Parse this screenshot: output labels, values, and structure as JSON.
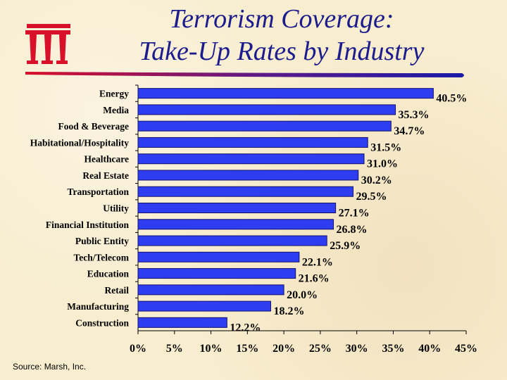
{
  "title": {
    "line1": "Terrorism Coverage:",
    "line2": "Take-Up Rates  by Industry"
  },
  "logo": {
    "icon": "iii-logo-icon",
    "color": "#d8102a"
  },
  "source": "Source: Marsh, Inc.",
  "colors": {
    "bar": "#2f3df0",
    "bar_edge": "#12126e",
    "title": "#1c1c8c",
    "rule": "#1a1aa8",
    "background": "#f8edcf"
  },
  "chart_data": {
    "type": "bar",
    "orientation": "horizontal",
    "title": "Terrorism Coverage: Take-Up Rates  by Industry",
    "xlabel": "",
    "ylabel": "",
    "xlim": [
      0,
      45
    ],
    "xticks": [
      0,
      5,
      10,
      15,
      20,
      25,
      30,
      35,
      40,
      45
    ],
    "xtick_labels": [
      "0%",
      "5%",
      "10%",
      "15%",
      "20%",
      "25%",
      "30%",
      "35%",
      "40%",
      "45%"
    ],
    "grid": false,
    "legend": "none",
    "categories": [
      "Energy",
      "Media",
      "Food & Beverage",
      "Habitational/Hospitality",
      "Healthcare",
      "Real Estate",
      "Transportation",
      "Utility",
      "Financial Institution",
      "Public Entity",
      "Tech/Telecom",
      "Education",
      "Retail",
      "Manufacturing",
      "Construction"
    ],
    "values": [
      40.5,
      35.3,
      34.7,
      31.5,
      31.0,
      30.2,
      29.5,
      27.1,
      26.8,
      25.9,
      22.1,
      21.6,
      20.0,
      18.2,
      12.2
    ],
    "value_labels": [
      "40.5%",
      "35.3%",
      "34.7%",
      "31.5%",
      "31.0%",
      "30.2%",
      "29.5%",
      "27.1%",
      "26.8%",
      "25.9%",
      "22.1%",
      "21.6%",
      "20.0%",
      "18.2%",
      "12.2%"
    ]
  }
}
